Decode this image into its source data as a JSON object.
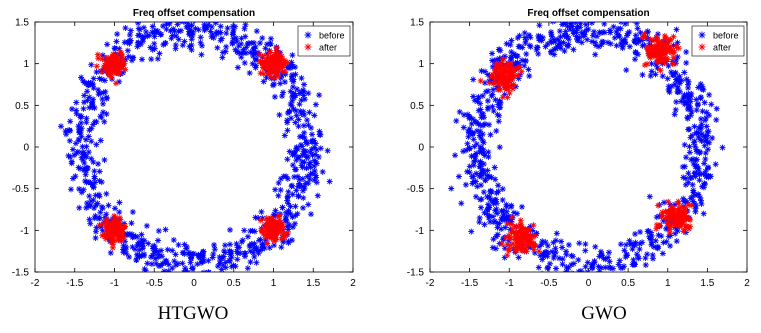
{
  "captions": [
    "HTGWO",
    "GWO"
  ],
  "chart_data": [
    {
      "type": "scatter",
      "title": "Freq offset compensation",
      "xlabel": "",
      "ylabel": "",
      "xlim": [
        -2,
        2
      ],
      "ylim": [
        -1.5,
        1.5
      ],
      "xticks": [
        -2,
        -1.5,
        -1,
        -0.5,
        0,
        0.5,
        1,
        1.5,
        2
      ],
      "yticks": [
        -1.5,
        -1,
        -0.5,
        0,
        0.5,
        1,
        1.5
      ],
      "grid": false,
      "legend_position": "top-right",
      "marker": "asterisk",
      "series": [
        {
          "name": "before",
          "color": "#0000ff",
          "distribution": "ring",
          "radius_x": 1.42,
          "radius_y": 1.4,
          "spread": 0.12,
          "count": 900
        },
        {
          "name": "after",
          "color": "#ff0000",
          "distribution": "clusters",
          "count_per_cluster": 110,
          "spread": 0.07,
          "centers": [
            [
              -1.0,
              1.0
            ],
            [
              1.0,
              1.0
            ],
            [
              -1.0,
              -1.0
            ],
            [
              1.0,
              -1.0
            ]
          ]
        }
      ]
    },
    {
      "type": "scatter",
      "title": "Freq offset compensation",
      "xlabel": "",
      "ylabel": "",
      "xlim": [
        -2,
        2
      ],
      "ylim": [
        -1.5,
        1.5
      ],
      "xticks": [
        -2,
        -1.5,
        -1,
        -0.5,
        0,
        0.5,
        1,
        1.5,
        2
      ],
      "yticks": [
        -1.5,
        -1,
        -0.5,
        0,
        0.5,
        1,
        1.5
      ],
      "grid": false,
      "legend_position": "top-right",
      "marker": "asterisk",
      "series": [
        {
          "name": "before",
          "color": "#0000ff",
          "distribution": "ring",
          "radius_x": 1.42,
          "radius_y": 1.4,
          "spread": 0.12,
          "count": 900
        },
        {
          "name": "after",
          "color": "#ff0000",
          "distribution": "clusters",
          "count_per_cluster": 110,
          "spread": 0.09,
          "centers": [
            [
              -1.05,
              0.85
            ],
            [
              0.9,
              1.15
            ],
            [
              -0.85,
              -1.1
            ],
            [
              1.1,
              -0.85
            ]
          ]
        }
      ]
    }
  ]
}
